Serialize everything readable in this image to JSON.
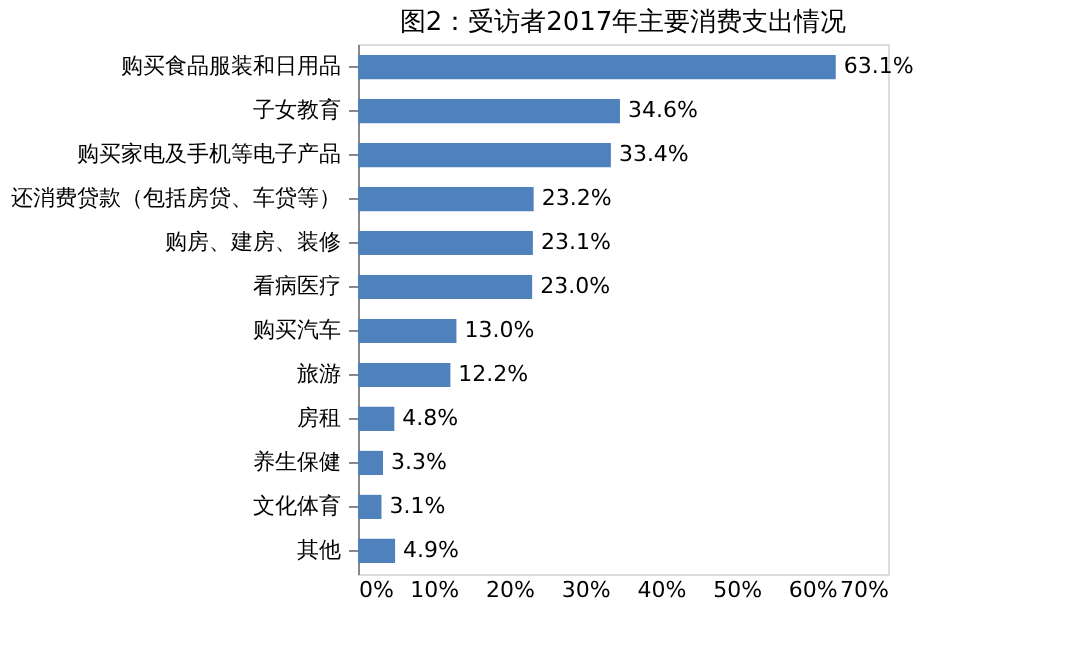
{
  "chart_data": {
    "type": "bar",
    "orientation": "horizontal",
    "title": "图2：受访者2017年主要消费支出情况",
    "categories": [
      "购买食品服装和日用品",
      "子女教育",
      "购买家电及手机等电子产品",
      "还消费贷款（包括房贷、车贷等）",
      "购房、建房、装修",
      "看病医疗",
      "购买汽车",
      "旅游",
      "房租",
      "养生保健",
      "文化体育",
      "其他"
    ],
    "values": [
      63.1,
      34.6,
      33.4,
      23.2,
      23.1,
      23.0,
      13.0,
      12.2,
      4.8,
      3.3,
      3.1,
      4.9
    ],
    "value_labels": [
      "63.1%",
      "34.6%",
      "33.4%",
      "23.2%",
      "23.1%",
      "23.0%",
      "13.0%",
      "12.2%",
      "4.8%",
      "3.3%",
      "3.1%",
      "4.9%"
    ],
    "color": "#4f81bd",
    "xlim": [
      0,
      70
    ],
    "xticks": [
      {
        "value": 0,
        "label": "0%"
      },
      {
        "value": 10,
        "label": "10%"
      },
      {
        "value": 20,
        "label": "20%"
      },
      {
        "value": 30,
        "label": "30%"
      },
      {
        "value": 40,
        "label": "40%"
      },
      {
        "value": 50,
        "label": "50%"
      },
      {
        "value": 60,
        "label": "60%"
      },
      {
        "value": 70,
        "label": "70%"
      }
    ],
    "grid": false
  }
}
